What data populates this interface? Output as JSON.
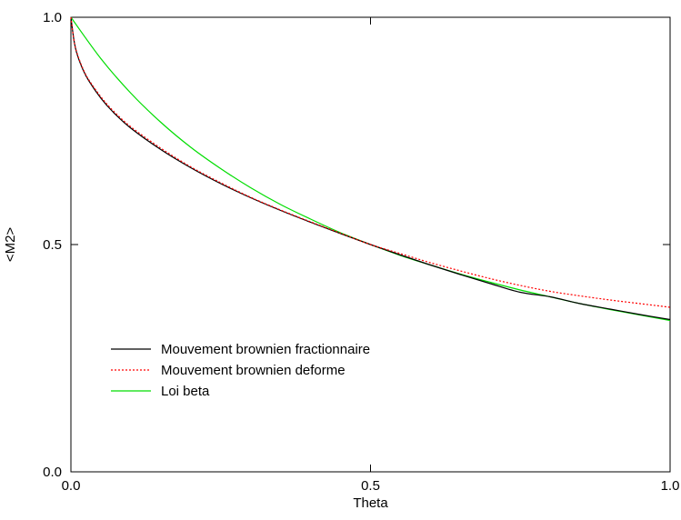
{
  "chart_data": {
    "type": "line",
    "title": "",
    "xlabel": "Theta",
    "ylabel": "<M2>",
    "xlim": [
      0.0,
      1.0
    ],
    "ylim": [
      0.0,
      1.0
    ],
    "xticks": [
      0.0,
      0.5,
      1.0
    ],
    "xtick_labels": [
      "0.0",
      "0.5",
      "1.0"
    ],
    "yticks": [
      0.0,
      0.5,
      1.0
    ],
    "ytick_labels": [
      "0.0",
      "0.5",
      "1.0"
    ],
    "grid": false,
    "legend_position": "lower-left",
    "series": [
      {
        "name": "Mouvement brownien fractionnaire",
        "color": "#000000",
        "dash": "solid",
        "x": [
          0.0,
          0.005,
          0.01,
          0.02,
          0.03,
          0.05,
          0.07,
          0.1,
          0.15,
          0.2,
          0.25,
          0.3,
          0.35,
          0.4,
          0.45,
          0.5,
          0.55,
          0.6,
          0.65,
          0.7,
          0.75,
          0.8,
          0.85,
          0.9,
          0.95,
          1.0
        ],
        "y": [
          1.0,
          0.95,
          0.92,
          0.885,
          0.86,
          0.822,
          0.792,
          0.756,
          0.709,
          0.669,
          0.634,
          0.603,
          0.575,
          0.549,
          0.524,
          0.5,
          0.477,
          0.455,
          0.434,
          0.414,
          0.395,
          0.385,
          0.37,
          0.358,
          0.346,
          0.335
        ]
      },
      {
        "name": "Mouvement brownien deforme",
        "color": "#ff0000",
        "dash": "dotted",
        "x": [
          0.0,
          0.005,
          0.01,
          0.02,
          0.03,
          0.05,
          0.07,
          0.1,
          0.15,
          0.2,
          0.25,
          0.3,
          0.35,
          0.4,
          0.45,
          0.5,
          0.55,
          0.6,
          0.65,
          0.7,
          0.75,
          0.8,
          0.85,
          0.9,
          0.95,
          1.0
        ],
        "y": [
          1.0,
          0.95,
          0.922,
          0.887,
          0.862,
          0.825,
          0.795,
          0.759,
          0.712,
          0.671,
          0.636,
          0.604,
          0.576,
          0.55,
          0.525,
          0.5,
          0.48,
          0.46,
          0.442,
          0.425,
          0.41,
          0.397,
          0.387,
          0.378,
          0.37,
          0.362
        ]
      },
      {
        "name": "Loi beta",
        "color": "#00dd00",
        "dash": "solid",
        "x": [
          0.0,
          0.05,
          0.1,
          0.15,
          0.2,
          0.25,
          0.3,
          0.35,
          0.4,
          0.45,
          0.5,
          0.55,
          0.6,
          0.65,
          0.7,
          0.75,
          0.8,
          0.85,
          0.9,
          0.95,
          1.0
        ],
        "y": [
          1.0,
          0.909,
          0.833,
          0.769,
          0.714,
          0.667,
          0.625,
          0.588,
          0.556,
          0.526,
          0.5,
          0.476,
          0.455,
          0.435,
          0.417,
          0.4,
          0.385,
          0.37,
          0.357,
          0.345,
          0.333
        ]
      }
    ]
  }
}
